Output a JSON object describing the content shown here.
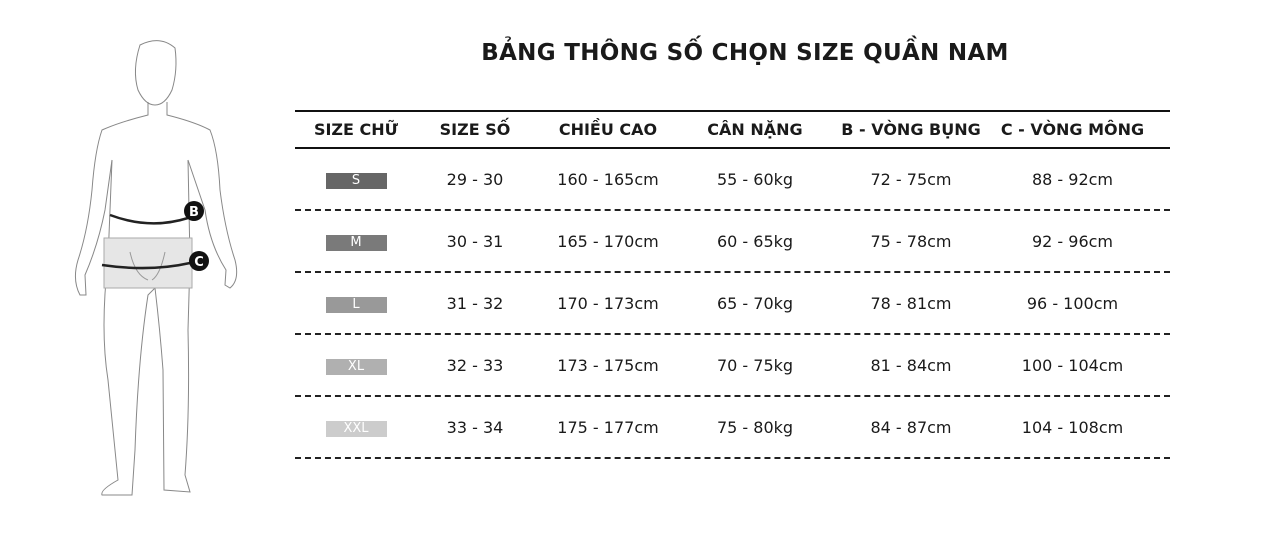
{
  "title": "BẢNG THÔNG SỐ CHỌN SIZE QUẦN NAM",
  "figure": {
    "marker_b": "B",
    "marker_c": "C"
  },
  "headers": [
    "SIZE CHỮ",
    "SIZE SỐ",
    "CHIỀU CAO",
    "CÂN NẶNG",
    "B - VÒNG BỤNG",
    "C - VÒNG MÔNG"
  ],
  "rows": [
    {
      "size": "S",
      "badge_color": "#666666",
      "number": "29 - 30",
      "height": "160 - 165cm",
      "weight": "55 - 60kg",
      "waist": "72 - 75cm",
      "hip": "88 - 92cm"
    },
    {
      "size": "M",
      "badge_color": "#7a7a7a",
      "number": "30 - 31",
      "height": "165 - 170cm",
      "weight": "60 - 65kg",
      "waist": "75 - 78cm",
      "hip": "92 - 96cm"
    },
    {
      "size": "L",
      "badge_color": "#999999",
      "number": "31 - 32",
      "height": "170 - 173cm",
      "weight": "65 - 70kg",
      "waist": "78 - 81cm",
      "hip": "96 - 100cm"
    },
    {
      "size": "XL",
      "badge_color": "#b0b0b0",
      "number": "32 - 33",
      "height": "173 - 175cm",
      "weight": "70 - 75kg",
      "waist": "81 - 84cm",
      "hip": "100 - 104cm"
    },
    {
      "size": "XXL",
      "badge_color": "#cccccc",
      "number": "33 - 34",
      "height": "175 - 177cm",
      "weight": "75 - 80kg",
      "waist": "84 - 87cm",
      "hip": "104 - 108cm"
    }
  ]
}
